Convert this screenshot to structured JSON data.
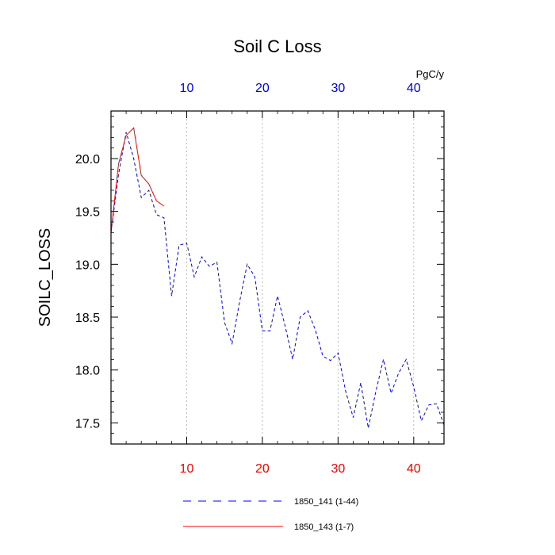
{
  "chart_data": {
    "type": "line",
    "title": "Soil C Loss",
    "ylabel": "SOILC_LOSS",
    "units_label": "PgC/y",
    "xlim": [
      0,
      44
    ],
    "ylim": [
      17.3,
      20.45
    ],
    "x_ticks": [
      10,
      20,
      30,
      40
    ],
    "x_tick_labels": [
      "10",
      "20",
      "30",
      "40"
    ],
    "y_ticks": [
      17.5,
      18.0,
      18.5,
      19.0,
      19.5,
      20.0
    ],
    "y_tick_labels": [
      "17.5",
      "18.0",
      "18.5",
      "19.0",
      "19.5",
      "20.0"
    ],
    "grid": "vertical dotted at top-axis ticks",
    "legend_position": "bottom",
    "colors": {
      "bottom_axis_labels": "#ff0000",
      "top_axis_labels": "#0000ff",
      "grid": "#aaaaaa"
    },
    "series": [
      {
        "name": "1850_141 (1-44)",
        "color": "#0000ff",
        "dash": "dashed",
        "x": [
          0,
          1,
          2,
          3,
          4,
          5,
          6,
          7,
          8,
          9,
          10,
          11,
          12,
          13,
          14,
          15,
          16,
          17,
          18,
          19,
          20,
          21,
          22,
          23,
          24,
          25,
          26,
          27,
          28,
          29,
          30,
          31,
          32,
          33,
          34,
          35,
          36,
          37,
          38,
          39,
          40,
          41,
          42,
          43,
          44
        ],
        "y": [
          19.3,
          19.85,
          20.25,
          20.0,
          19.63,
          19.7,
          19.47,
          19.44,
          18.7,
          19.18,
          19.2,
          18.88,
          19.07,
          18.98,
          19.02,
          18.45,
          18.25,
          18.65,
          19.0,
          18.88,
          18.37,
          18.37,
          18.7,
          18.42,
          18.1,
          18.5,
          18.56,
          18.38,
          18.13,
          18.09,
          18.16,
          17.8,
          17.55,
          17.88,
          17.45,
          17.8,
          18.1,
          17.78,
          17.97,
          18.1,
          17.84,
          17.52,
          17.67,
          17.68,
          17.48
        ]
      },
      {
        "name": "1850_143 (1-7)",
        "color": "#ff0000",
        "dash": "solid",
        "x": [
          0,
          1,
          2,
          3,
          4,
          5,
          6,
          7
        ],
        "y": [
          19.3,
          19.95,
          20.22,
          20.29,
          19.84,
          19.76,
          19.6,
          19.55
        ]
      }
    ]
  }
}
